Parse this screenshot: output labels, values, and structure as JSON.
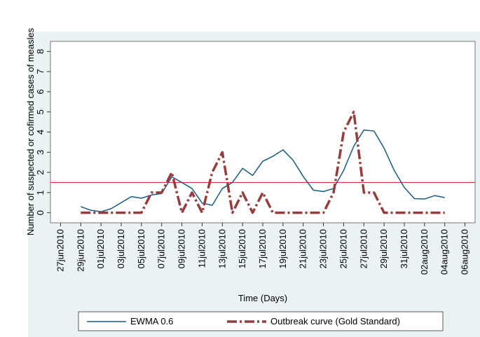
{
  "chart_data": {
    "type": "line",
    "x_label": "Time (Days)",
    "y_label": "Number of suspected or cofirmed cases of measles",
    "x": [
      "2010-06-29",
      "2010-06-30",
      "2010-07-01",
      "2010-07-02",
      "2010-07-03",
      "2010-07-04",
      "2010-07-05",
      "2010-07-06",
      "2010-07-07",
      "2010-07-08",
      "2010-07-09",
      "2010-07-10",
      "2010-07-11",
      "2010-07-12",
      "2010-07-13",
      "2010-07-14",
      "2010-07-15",
      "2010-07-16",
      "2010-07-17",
      "2010-07-18",
      "2010-07-19",
      "2010-07-20",
      "2010-07-21",
      "2010-07-22",
      "2010-07-23",
      "2010-07-24",
      "2010-07-25",
      "2010-07-26",
      "2010-07-27",
      "2010-07-28",
      "2010-07-29",
      "2010-07-30",
      "2010-07-31",
      "2010-08-01",
      "2010-08-02",
      "2010-08-03",
      "2010-08-04"
    ],
    "series": [
      {
        "name": "EWMA 0.6",
        "color": "#1a5a80",
        "style": "solid",
        "values": [
          0.3,
          0.12,
          0.05,
          0.2,
          0.5,
          0.8,
          0.72,
          0.88,
          0.95,
          1.78,
          1.5,
          1.2,
          0.48,
          0.37,
          1.2,
          1.5,
          2.2,
          1.85,
          2.55,
          2.8,
          3.12,
          2.6,
          1.8,
          1.12,
          1.05,
          1.2,
          2.1,
          3.3,
          4.1,
          4.05,
          3.2,
          2.1,
          1.25,
          0.7,
          0.68,
          0.85,
          0.75
        ]
      },
      {
        "name": "Outbreak curve (Gold Standard)",
        "color": "#963c3c",
        "style": "dashdot",
        "values": [
          0,
          0,
          0,
          0,
          0,
          0,
          0,
          1,
          1,
          2,
          0,
          1,
          0,
          2,
          3,
          0,
          1,
          0,
          1,
          0,
          0,
          0,
          0,
          0,
          0,
          1,
          4,
          5,
          1,
          1,
          0,
          0,
          0,
          0,
          0,
          0,
          0
        ]
      }
    ],
    "threshold": {
      "value": 1.5,
      "color": "#e0303a"
    },
    "xlim": [
      "2010-06-26",
      "2010-08-07"
    ],
    "xticks": [
      {
        "value": "2010-06-27",
        "label": "27jun2010"
      },
      {
        "value": "2010-06-29",
        "label": "29jun2010"
      },
      {
        "value": "2010-07-01",
        "label": "01jul2010"
      },
      {
        "value": "2010-07-03",
        "label": "03jul2010"
      },
      {
        "value": "2010-07-05",
        "label": "05jul2010"
      },
      {
        "value": "2010-07-07",
        "label": "07jul2010"
      },
      {
        "value": "2010-07-09",
        "label": "09jul2010"
      },
      {
        "value": "2010-07-11",
        "label": "11jul2010"
      },
      {
        "value": "2010-07-13",
        "label": "13jul2010"
      },
      {
        "value": "2010-07-15",
        "label": "15jul2010"
      },
      {
        "value": "2010-07-17",
        "label": "17jul2010"
      },
      {
        "value": "2010-07-19",
        "label": "19jul2010"
      },
      {
        "value": "2010-07-21",
        "label": "21jul2010"
      },
      {
        "value": "2010-07-23",
        "label": "23jul2010"
      },
      {
        "value": "2010-07-25",
        "label": "25jul2010"
      },
      {
        "value": "2010-07-27",
        "label": "27jul2010"
      },
      {
        "value": "2010-07-29",
        "label": "29jul2010"
      },
      {
        "value": "2010-07-31",
        "label": "31jul2010"
      },
      {
        "value": "2010-08-02",
        "label": "02aug2010"
      },
      {
        "value": "2010-08-04",
        "label": "04aug2010"
      },
      {
        "value": "2010-08-06",
        "label": "06aug2010"
      }
    ],
    "ylim": [
      -0.5,
      8.5
    ],
    "yticks": [
      0,
      1,
      2,
      3,
      4,
      5,
      6,
      7,
      8
    ]
  }
}
